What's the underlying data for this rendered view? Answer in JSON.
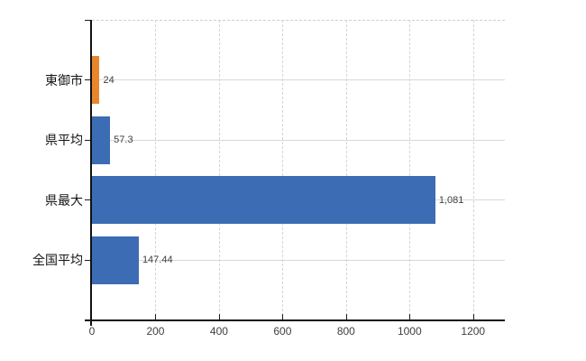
{
  "chart_data": {
    "type": "bar",
    "orientation": "horizontal",
    "title": "",
    "categories": [
      "東御市",
      "県平均",
      "県最大",
      "全国平均"
    ],
    "values": [
      24,
      57.3,
      1081,
      147.44
    ],
    "value_labels": [
      "24",
      "57.3",
      "1,081",
      "147.44"
    ],
    "bar_colors": [
      "#e8862e",
      "#3c6cb4",
      "#3c6cb4",
      "#3c6cb4"
    ],
    "x_ticks": [
      0,
      200,
      400,
      600,
      800,
      1000,
      1200
    ],
    "x_tick_labels": [
      "0",
      "200",
      "400",
      "600",
      "800",
      "1000",
      "1200"
    ],
    "xlim": [
      0,
      1300
    ],
    "grid": true,
    "legend": false,
    "colors": {
      "highlight_bar": "#e8862e",
      "default_bar": "#3c6cb4",
      "axis": "#111111",
      "horizontal_gridline": "#d6dbd6",
      "vertical_gridline_dashed": "#d5d4d8",
      "tick_label": "#3f3f3f",
      "value_label": "#404040",
      "category_label": "#141414",
      "background": "#ffffff"
    }
  }
}
